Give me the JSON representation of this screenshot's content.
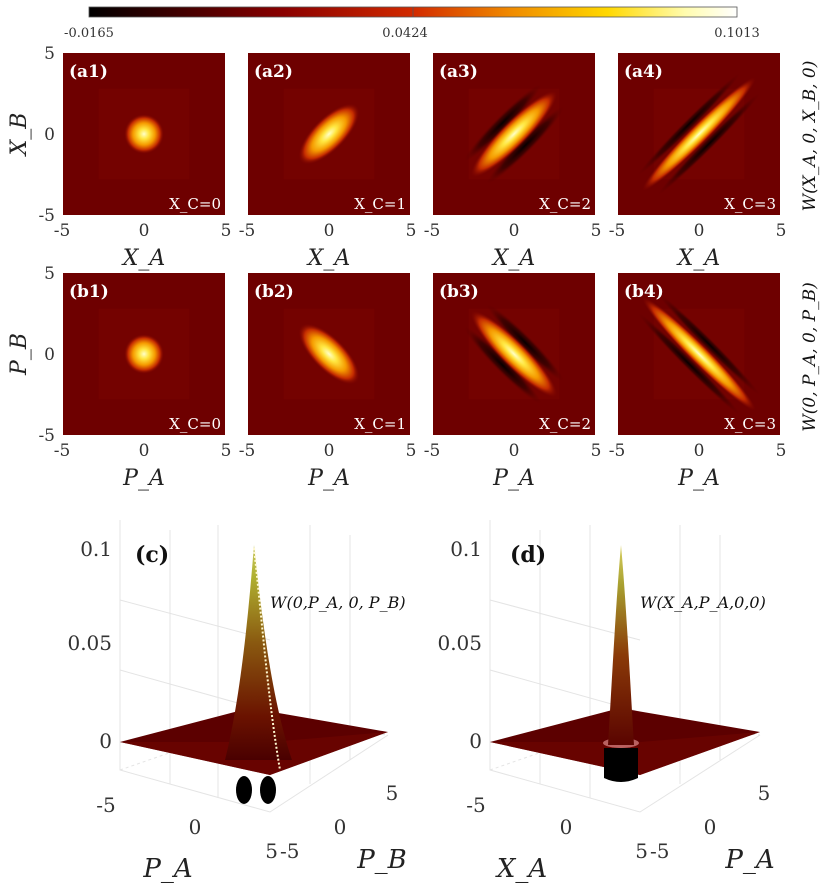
{
  "colorbar": {
    "min_label": "-0.0165",
    "mid_label": "0.0424",
    "max_label": "0.1013",
    "min": -0.0165,
    "max": 0.1013,
    "colormap": "hot"
  },
  "chart_data": [
    {
      "type": "heatmap",
      "row": "a",
      "row_label": "W(X_A, 0, X_B, 0)",
      "xlabel": "X_A",
      "ylabel": "X_B",
      "xlim": [
        -5,
        5
      ],
      "ylim": [
        -5,
        5
      ],
      "tick_labels": [
        "-5",
        "0",
        "5"
      ],
      "orientation": "diagonal",
      "panels": [
        {
          "label": "(a1)",
          "xc_label": "X_C=0",
          "xc": 0
        },
        {
          "label": "(a2)",
          "xc_label": "X_C=1",
          "xc": 1
        },
        {
          "label": "(a3)",
          "xc_label": "X_C=2",
          "xc": 2
        },
        {
          "label": "(a4)",
          "xc_label": "X_C=3",
          "xc": 3
        }
      ]
    },
    {
      "type": "heatmap",
      "row": "b",
      "row_label": "W(0, P_A, 0, P_B)",
      "xlabel": "P_A",
      "ylabel": "P_B",
      "xlim": [
        -5,
        5
      ],
      "ylim": [
        -5,
        5
      ],
      "tick_labels": [
        "-5",
        "0",
        "5"
      ],
      "orientation": "antidiagonal",
      "panels": [
        {
          "label": "(b1)",
          "xc_label": "X_C=0",
          "xc": 0
        },
        {
          "label": "(b2)",
          "xc_label": "X_C=1",
          "xc": 1
        },
        {
          "label": "(b3)",
          "xc_label": "X_C=2",
          "xc": 2
        },
        {
          "label": "(b4)",
          "xc_label": "X_C=3",
          "xc": 3
        }
      ]
    },
    {
      "type": "surface",
      "label": "(c)",
      "function_label": "W(0,P_A, 0, P_B)",
      "xlabel": "P_A",
      "ylabel": "P_B",
      "xticks": [
        "-5",
        "0",
        "5"
      ],
      "yticks": [
        "-5",
        "0",
        "5"
      ],
      "zticks": [
        "0",
        "0.05",
        "0.1"
      ],
      "zlim": [
        -0.0165,
        0.1013
      ],
      "peak": 0.1
    },
    {
      "type": "surface",
      "label": "(d)",
      "function_label": "W(X_A,P_A,0,0)",
      "xlabel": "X_A",
      "ylabel": "P_A",
      "xticks": [
        "-5",
        "0",
        "5"
      ],
      "yticks": [
        "-5",
        "0",
        "5"
      ],
      "zticks": [
        "0",
        "0.05",
        "0.1"
      ],
      "zlim": [
        -0.0165,
        0.1013
      ],
      "peak": 0.1
    }
  ]
}
